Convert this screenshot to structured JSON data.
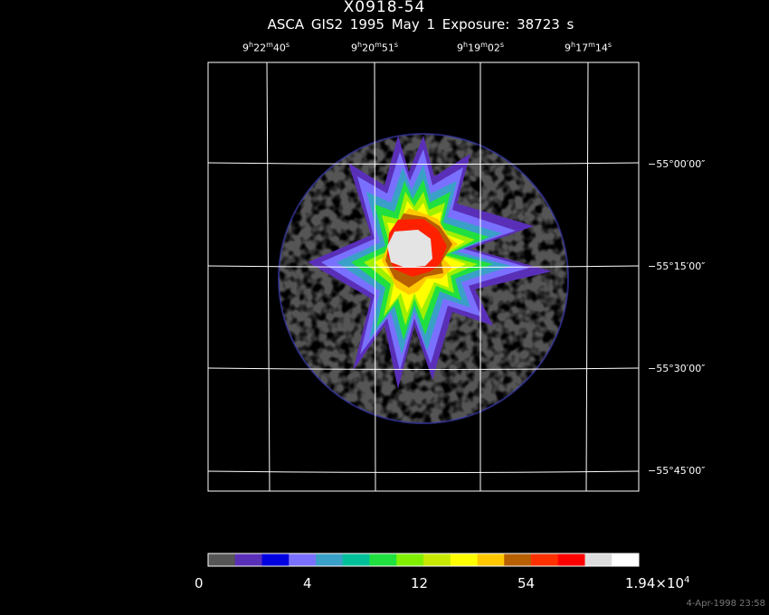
{
  "header": {
    "title": "X0918-54",
    "subtitle": "ASCA GIS2   1995 May  1    Exposure: 38723 s"
  },
  "ra_ticks": [
    {
      "h": "9",
      "m": "22",
      "s": "40"
    },
    {
      "h": "9",
      "m": "20",
      "s": "51"
    },
    {
      "h": "9",
      "m": "19",
      "s": "02"
    },
    {
      "h": "9",
      "m": "17",
      "s": "14"
    }
  ],
  "dec_ticks": [
    "−55°00′00″",
    "−55°15′00″",
    "−55°30′00″",
    "−55°45′00″"
  ],
  "colorbar": {
    "colors": [
      "#555555",
      "#5a2fb8",
      "#0000e0",
      "#7a70ff",
      "#3aa0c8",
      "#00c09a",
      "#20e040",
      "#80f000",
      "#c8e800",
      "#ffff00",
      "#ffc800",
      "#b86000",
      "#ff3000",
      "#ff0000",
      "#dddddd",
      "#ffffff"
    ],
    "labels": [
      "0",
      "4",
      "12",
      "54",
      "1.94×10",
      "4"
    ]
  },
  "footer": {
    "timestamp": "4-Apr-1998 23:58"
  }
}
